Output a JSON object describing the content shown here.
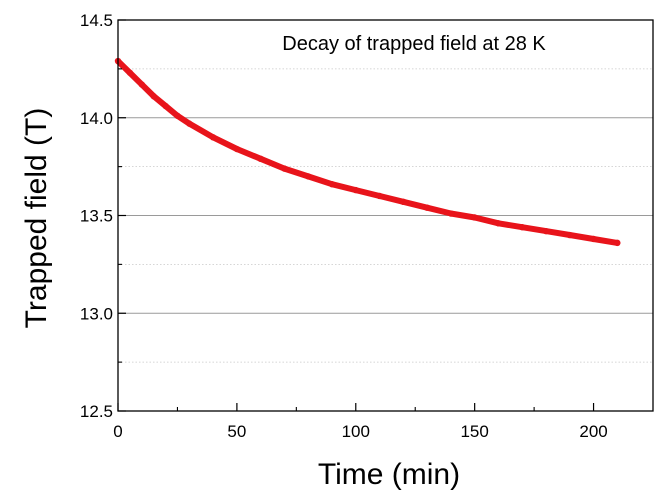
{
  "chart_data": {
    "type": "line",
    "title": "Decay of trapped field at 28 K",
    "xlabel": "Time (min)",
    "ylabel": "Trapped field (T)",
    "xlim": [
      0,
      225
    ],
    "ylim": [
      12.5,
      14.5
    ],
    "x_ticks": [
      0,
      50,
      100,
      150,
      200
    ],
    "y_ticks": [
      12.5,
      13.0,
      13.5,
      14.0,
      14.5
    ],
    "x_tick_labels": [
      "0",
      "50",
      "100",
      "150",
      "200"
    ],
    "y_tick_labels": [
      "12.5",
      "13.0",
      "13.5",
      "14.0",
      "14.5"
    ],
    "grid": "horizontal dotted at minor ticks",
    "series": [
      {
        "color": "#e8141b",
        "x": [
          0,
          5,
          10,
          15,
          20,
          25,
          30,
          40,
          50,
          60,
          70,
          80,
          90,
          100,
          110,
          120,
          130,
          140,
          150,
          160,
          170,
          180,
          190,
          200,
          210
        ],
        "y": [
          14.29,
          14.23,
          14.17,
          14.11,
          14.06,
          14.01,
          13.97,
          13.9,
          13.84,
          13.79,
          13.74,
          13.7,
          13.66,
          13.63,
          13.6,
          13.57,
          13.54,
          13.51,
          13.49,
          13.46,
          13.44,
          13.42,
          13.4,
          13.38,
          13.36
        ]
      }
    ]
  }
}
